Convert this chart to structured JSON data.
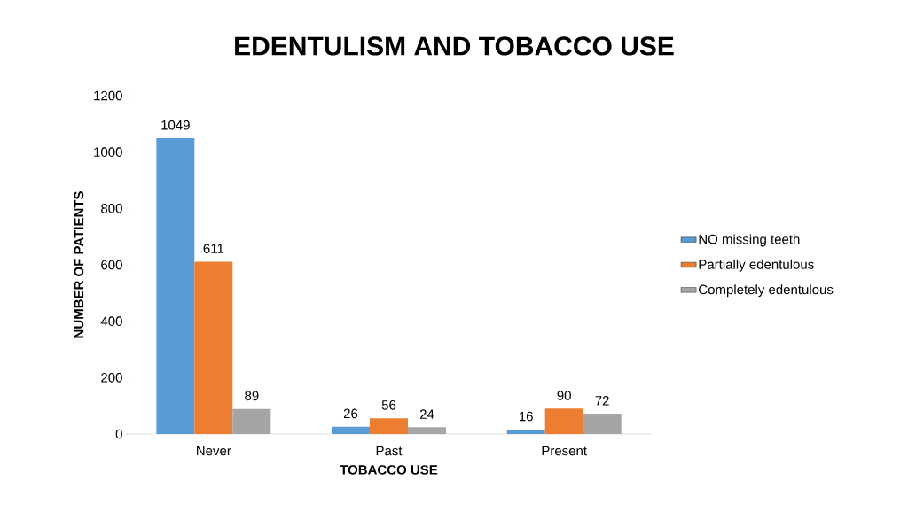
{
  "chart_data": {
    "type": "bar",
    "title": "EDENTULISM AND TOBACCO USE",
    "xlabel": "TOBACCO USE",
    "ylabel": "NUMBER OF PATIENTS",
    "categories": [
      "Never",
      "Past",
      "Present"
    ],
    "series": [
      {
        "name": "NO missing teeth",
        "color": "#5b9bd5",
        "values": [
          1049,
          26,
          16
        ]
      },
      {
        "name": "Partially edentulous",
        "color": "#ed7d31",
        "values": [
          611,
          56,
          90
        ]
      },
      {
        "name": "Completely edentulous",
        "color": "#a5a5a5",
        "values": [
          89,
          24,
          72
        ]
      }
    ],
    "ylim": [
      0,
      1200
    ],
    "yticks": [
      0,
      200,
      400,
      600,
      800,
      1000,
      1200
    ],
    "grid": false,
    "legend": "right",
    "data_labels": true
  }
}
